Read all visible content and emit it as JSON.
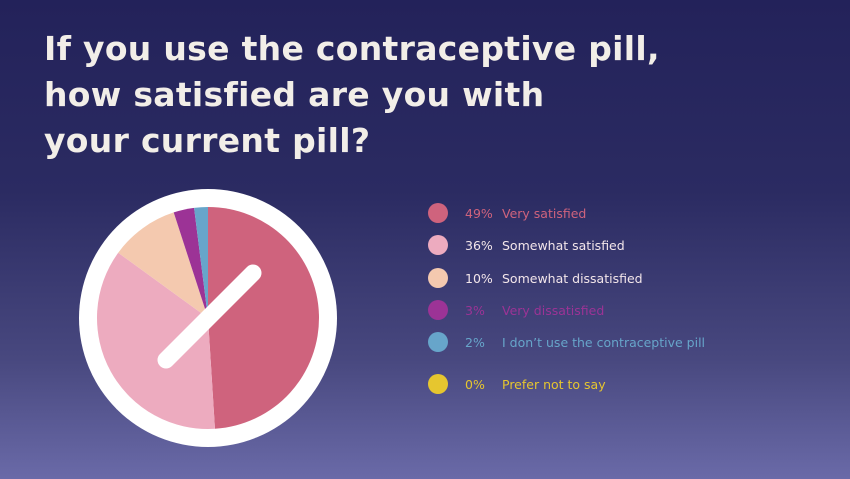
{
  "chart_data": {
    "type": "pie",
    "title": "If you use the contraceptive pill, how satisfied are you with your current pill?",
    "title_lines": [
      "If you use the contraceptive pill,",
      "how satisfied are you with",
      "your current pill?"
    ],
    "slices": [
      {
        "label": "Very satisfied",
        "value": 49,
        "pct_label": "49%",
        "color": "#cf637d"
      },
      {
        "label": "Somewhat satisfied",
        "value": 36,
        "pct_label": "36%",
        "color": "#edabbf"
      },
      {
        "label": "Somewhat dissatisfied",
        "value": 10,
        "pct_label": "10%",
        "color": "#f4c9af"
      },
      {
        "label": "Very dissatisfied",
        "value": 3,
        "pct_label": "3%",
        "color": "#9c3396"
      },
      {
        "label": "I don’t use the contraceptive pill",
        "value": 2,
        "pct_label": "2%",
        "color": "#67a5ca"
      },
      {
        "label": "Prefer not to say",
        "value": 0,
        "pct_label": "0%",
        "color": "#e6c62f"
      }
    ],
    "legend_position": "right"
  }
}
